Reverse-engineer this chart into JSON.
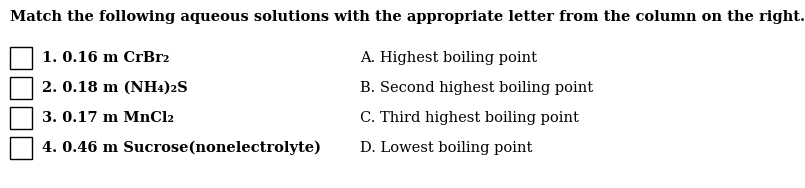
{
  "title": "Match the following aqueous solutions with the appropriate letter from the column on the right.",
  "background_color": "#ffffff",
  "title_fontsize": 10.5,
  "row_fontsize": 10.5,
  "sub_fontsize": 8.0,
  "rows": [
    {
      "left_segments": [
        {
          "text": "1. 0.16 m CrBr",
          "bold": true,
          "sub": false
        },
        {
          "text": "2",
          "bold": true,
          "sub": true
        }
      ],
      "right_text": "A. Highest boiling point"
    },
    {
      "left_segments": [
        {
          "text": "2. 0.18 m (NH",
          "bold": true,
          "sub": false
        },
        {
          "text": "4",
          "bold": true,
          "sub": true
        },
        {
          "text": ")",
          "bold": true,
          "sub": false
        },
        {
          "text": "2",
          "bold": true,
          "sub": true
        },
        {
          "text": "S",
          "bold": true,
          "sub": false
        }
      ],
      "right_text": "B. Second highest boiling point"
    },
    {
      "left_segments": [
        {
          "text": "3. 0.17 m MnCl",
          "bold": true,
          "sub": false
        },
        {
          "text": "2",
          "bold": true,
          "sub": true
        }
      ],
      "right_text": "C. Third highest boiling point"
    },
    {
      "left_segments": [
        {
          "text": "4. 0.46 m Sucrose(nonelectrolyte)",
          "bold": true,
          "sub": false
        }
      ],
      "right_text": "D. Lowest boiling point"
    }
  ]
}
